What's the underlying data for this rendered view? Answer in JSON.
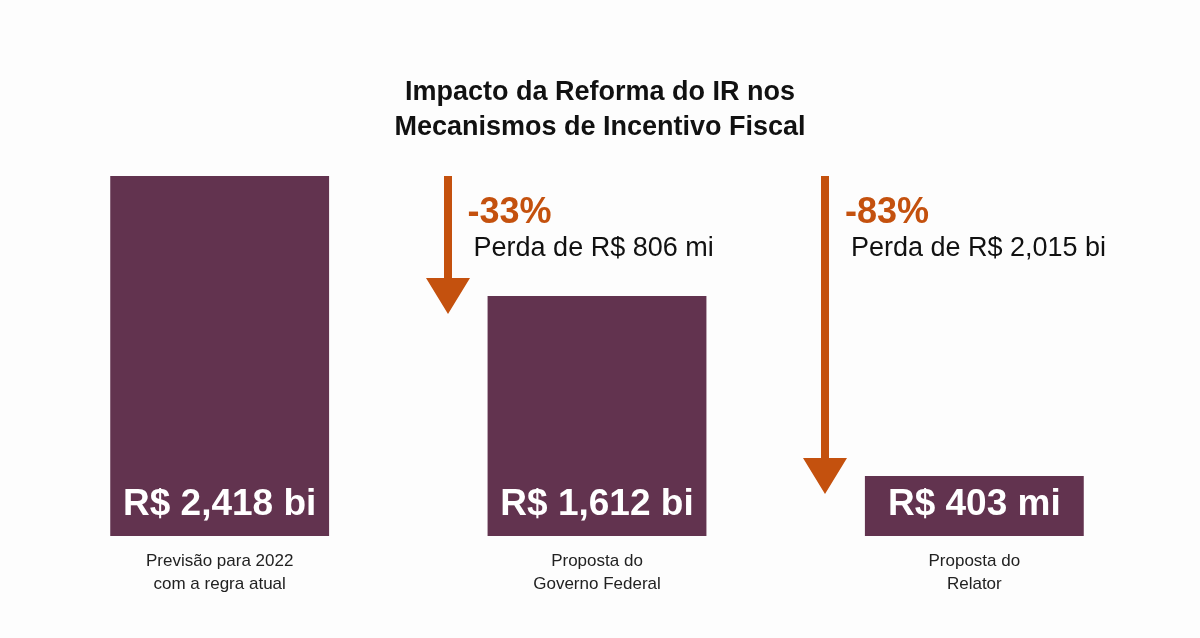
{
  "chart_data": {
    "type": "bar",
    "title": "Impacto da Reforma do IR nos Mecanismos de Incentivo Fiscal",
    "categories": [
      "Previsão para 2022 com a regra atual",
      "Proposta do Governo Federal",
      "Proposta do Relator"
    ],
    "values": [
      2418,
      1612,
      403
    ],
    "value_labels": [
      "R$ 2,418 bi",
      "R$ 1,612 bi",
      "R$ 403 mi"
    ],
    "color": "#62334f",
    "tick_labels": "x",
    "grid": false,
    "annotations": [
      "-33%",
      "Perda de R$ 806 mi",
      "-83%",
      "Perda de R$ 2,015 bi"
    ]
  }
}
